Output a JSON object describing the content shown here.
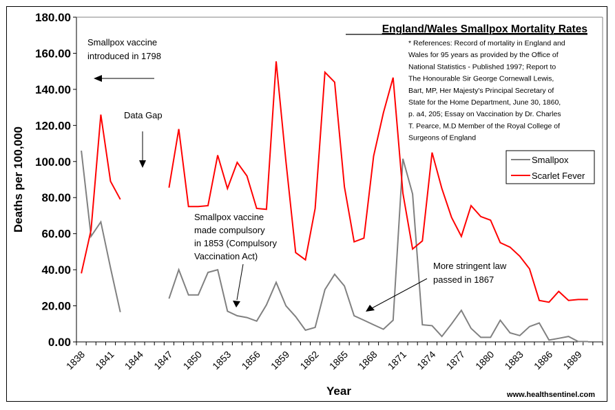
{
  "chart_data": {
    "type": "line",
    "title": "England/Wales Smallpox Mortality Rates",
    "xlabel": "Year",
    "ylabel": "Deaths per 100,000",
    "ylim": [
      0,
      180
    ],
    "yticks": [
      "0.00",
      "20.00",
      "40.00",
      "60.00",
      "80.00",
      "100.00",
      "120.00",
      "140.00",
      "160.00",
      "180.00"
    ],
    "x": [
      1838,
      1839,
      1840,
      1841,
      1842,
      1843,
      1844,
      1845,
      1846,
      1847,
      1848,
      1849,
      1850,
      1851,
      1852,
      1853,
      1854,
      1855,
      1856,
      1857,
      1858,
      1859,
      1860,
      1861,
      1862,
      1863,
      1864,
      1865,
      1866,
      1867,
      1868,
      1869,
      1870,
      1871,
      1872,
      1873,
      1874,
      1875,
      1876,
      1877,
      1878,
      1879,
      1880,
      1881,
      1882,
      1883,
      1884,
      1885,
      1886,
      1887,
      1888,
      1889,
      1890,
      1891
    ],
    "xtick_labels": [
      "1838",
      "1841",
      "1844",
      "1847",
      "1850",
      "1853",
      "1856",
      "1859",
      "1862",
      "1865",
      "1868",
      "1871",
      "1874",
      "1877",
      "1880",
      "1883",
      "1886",
      "1889"
    ],
    "series": [
      {
        "name": "Smallpox",
        "color": "#808080",
        "values": [
          106,
          58.5,
          66.5,
          41,
          16.5,
          null,
          null,
          null,
          null,
          24,
          40,
          26,
          26,
          38.5,
          40,
          17,
          14.5,
          13.5,
          11.5,
          20.5,
          33,
          20,
          14,
          6.5,
          8,
          29,
          37.5,
          31,
          14.5,
          12,
          9.5,
          7,
          12,
          101.5,
          82,
          9.5,
          9,
          3,
          10,
          17.5,
          7.5,
          2.5,
          2.5,
          12,
          5,
          3.5,
          8.5,
          10.5,
          1,
          2,
          3,
          0.2,
          0.2,
          null
        ]
      },
      {
        "name": "Scarlet Fever",
        "color": "#ff0000",
        "values": [
          38,
          62,
          126,
          89,
          79,
          null,
          null,
          null,
          null,
          85.5,
          118,
          75,
          75,
          75.5,
          103.5,
          85,
          99.5,
          92,
          74,
          73.5,
          155.5,
          100,
          49.5,
          45.5,
          74,
          149.5,
          144,
          86,
          55.5,
          57.5,
          103,
          127,
          146.5,
          82.5,
          51.5,
          56,
          105,
          85,
          69,
          58.5,
          75.5,
          69.5,
          67.5,
          55,
          52.5,
          47.5,
          40.5,
          23,
          22,
          28,
          23,
          23.5,
          23.5,
          null
        ]
      }
    ],
    "legend_position": "top-right",
    "grid": false,
    "annotations": [
      {
        "name": "vaccine-introduced",
        "lines": [
          "Smallpox vaccine",
          "introduced in 1798"
        ]
      },
      {
        "name": "data-gap",
        "lines": [
          "Data Gap"
        ]
      },
      {
        "name": "compulsory",
        "lines": [
          "Smallpox vaccine",
          "made compulsory",
          "in 1853 (Compulsory",
          "Vaccination Act)"
        ]
      },
      {
        "name": "stringent-law",
        "lines": [
          "More stringent law",
          "passed in 1867"
        ]
      }
    ],
    "references": [
      "* References: Record of mortality in England and",
      "Wales for 95 years as provided by the Office of",
      "National Statistics - Published 1997; Report to",
      "The Honourable Sir George Cornewall Lewis,",
      "Bart, MP, Her Majesty's Principal Secretary of",
      "State for the Home Department, June 30, 1860,",
      "p. a4, 205; Essay on Vaccination by Dr. Charles",
      "T. Pearce, M.D Member of the Royal College of",
      "Surgeons of England"
    ],
    "credit": "www.healthsentinel.com"
  }
}
